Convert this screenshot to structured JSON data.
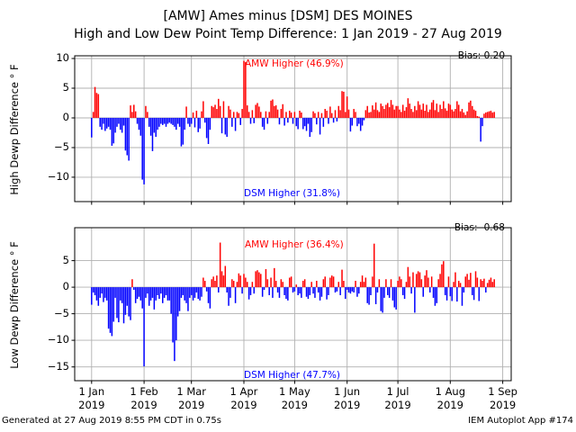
{
  "header": {
    "title_line1": "[AMW] Ames minus [DSM] DES MOINES",
    "title_line2": "High and Low Dew Point Temp Difference: 1 Jan 2019 - 27 Aug 2019"
  },
  "footer": {
    "generated_text": "Generated at 27 Aug 2019 8:55 PM CDT in 0.75s",
    "app_text": "IEM Autoplot App #174"
  },
  "colors": {
    "amw_higher_bar": "#ff0000",
    "dsm_higher_bar": "#0000ff",
    "grid": "#b0b0b0",
    "frame": "#000000"
  },
  "x_axis": {
    "xlim_days": [
      -10,
      248
    ],
    "tick_days": [
      0,
      31,
      59,
      90,
      120,
      151,
      181,
      212,
      243
    ],
    "tick_labels_line1": [
      "1 Jan",
      "1 Feb",
      "1 Mar",
      "1 Apr",
      "1 May",
      "1 Jun",
      "1 Jul",
      "1 Aug",
      "1 Sep"
    ],
    "tick_labels_line2": [
      "2019",
      "2019",
      "2019",
      "2019",
      "2019",
      "2019",
      "2019",
      "2019",
      "2019"
    ]
  },
  "chart_data": [
    {
      "type": "bar",
      "ylabel": "High Dewp Difference ° F",
      "bias_text": "Bias: 0.20",
      "annotation_red": "AMW Higher (46.9%)",
      "annotation_blue": "DSM Higher (31.8%)",
      "date_range": "1 Jan 2019 - 27 Aug 2019",
      "ylim": [
        -14.1,
        10.45
      ],
      "yticks": [
        10,
        5,
        0,
        -5,
        -10
      ],
      "grid": true,
      "values": [
        -3.3,
        1.0,
        5.2,
        4.2,
        4.0,
        -1.5,
        -2.0,
        -1.0,
        -2.2,
        -1.8,
        -1.5,
        -2.0,
        -4.7,
        -4.3,
        -2.5,
        -1.5,
        -1.0,
        -2.0,
        -2.5,
        -1.3,
        -5.5,
        -6.3,
        -7.2,
        2.1,
        1.0,
        2.2,
        1.1,
        -1.0,
        -2.0,
        -3.0,
        -10.4,
        -11.2,
        2.0,
        1.0,
        -1.5,
        -3.0,
        -5.6,
        -2.5,
        -3.2,
        -2.0,
        -1.5,
        -1.0,
        -1.2,
        -1.0,
        -1.5,
        -1.0,
        -0.8,
        -1.0,
        -1.2,
        -1.5,
        -2.0,
        -1.0,
        -1.5,
        -4.8,
        -4.5,
        -2.0,
        1.9,
        -1.0,
        -1.5,
        -1.0,
        0.9,
        -1.6,
        1.2,
        -2.4,
        -1.8,
        1.1,
        2.8,
        -0.8,
        -3.4,
        -4.4,
        -2.0,
        2.0,
        1.8,
        2.2,
        1.5,
        3.2,
        2.0,
        -2.6,
        2.8,
        -2.8,
        -3.2,
        2.0,
        1.4,
        -1.5,
        1.0,
        -2.2,
        1.0,
        0.8,
        -1.2,
        1.5,
        9.6,
        9.4,
        2.1,
        1.0,
        -1.0,
        1.3,
        -0.9,
        2.2,
        2.5,
        1.9,
        1.0,
        -1.5,
        -2.0,
        1.1,
        -1.0,
        1.0,
        2.9,
        3.1,
        2.0,
        2.1,
        1.4,
        -1.1,
        1.5,
        2.3,
        -1.3,
        1.0,
        -0.8,
        1.2,
        0.9,
        -1.0,
        1.0,
        -1.4,
        -1.9,
        1.2,
        0.9,
        -1.9,
        -1.4,
        -2.2,
        -1.0,
        -3.2,
        -2.4,
        1.1,
        0.8,
        -1.1,
        1.0,
        -2.8,
        0.8,
        -1.5,
        1.5,
        1.2,
        -1.0,
        1.9,
        0.8,
        -0.8,
        1.3,
        -0.6,
        2.0,
        1.3,
        4.5,
        4.4,
        1.0,
        3.6,
        1.4,
        -2.3,
        -1.3,
        1.5,
        1.0,
        -1.4,
        -1.0,
        -2.2,
        -1.3,
        -0.4,
        1.3,
        2.0,
        0.9,
        1.0,
        2.1,
        1.4,
        2.6,
        1.3,
        1.0,
        2.4,
        2.0,
        1.5,
        2.2,
        2.5,
        1.8,
        3.0,
        2.2,
        1.4,
        2.0,
        2.0,
        1.4,
        1.0,
        2.2,
        1.2,
        1.8,
        3.3,
        2.4,
        1.5,
        1.0,
        2.0,
        1.3,
        2.8,
        2.2,
        1.4,
        2.4,
        1.2,
        2.2,
        1.0,
        1.4,
        2.6,
        3.0,
        1.3,
        2.4,
        1.0,
        2.2,
        1.5,
        2.8,
        1.6,
        1.2,
        2.4,
        2.2,
        1.4,
        1.1,
        1.5,
        2.8,
        2.2,
        1.1,
        1.5,
        0.9,
        0.5,
        1.1,
        2.6,
        2.9,
        2.0,
        1.4,
        1.2,
        0.3,
        0.2,
        -4.0,
        -1.4,
        0.7,
        0.9,
        1.0,
        1.1,
        1.2,
        0.9,
        1.0
      ]
    },
    {
      "type": "bar",
      "ylabel": "Low Dewp Difference ° F",
      "bias_text": "Bias: -0.68",
      "annotation_red": "AMW Higher (36.4%)",
      "annotation_blue": "DSM Higher (47.7%)",
      "date_range": "1 Jan 2019 - 27 Aug 2019",
      "ylim": [
        -17.6,
        11.2
      ],
      "yticks": [
        5,
        0,
        -5,
        -10,
        -15
      ],
      "grid": true,
      "values": [
        -3.3,
        -1.0,
        -1.5,
        -2.5,
        -3.5,
        -2.0,
        -1.2,
        -2.8,
        -2.0,
        -2.5,
        -7.8,
        -8.6,
        -9.2,
        -6.5,
        -2.0,
        -5.8,
        -6.6,
        -2.5,
        -3.0,
        -6.8,
        -5.2,
        -3.5,
        -5.5,
        -6.2,
        1.5,
        -0.5,
        -3.0,
        -2.2,
        -1.8,
        -2.5,
        -4.0,
        -14.9,
        -2.0,
        -1.2,
        -3.5,
        -2.5,
        -2.0,
        -4.2,
        -2.5,
        -1.5,
        -2.2,
        -1.2,
        -3.0,
        -2.0,
        -1.5,
        -2.5,
        -2.5,
        -5.0,
        -10.4,
        -13.9,
        -10.0,
        -5.5,
        -4.5,
        -2.0,
        -1.5,
        -2.5,
        -3.0,
        -4.5,
        -2.0,
        -1.5,
        -2.5,
        -2.0,
        -1.0,
        -2.2,
        -2.5,
        -1.8,
        1.8,
        1.2,
        -0.8,
        -3.0,
        -4.0,
        1.5,
        2.0,
        1.2,
        2.2,
        -1.0,
        8.4,
        3.0,
        2.2,
        4.0,
        -1.0,
        -3.5,
        -2.0,
        1.5,
        1.2,
        -3.0,
        1.0,
        2.6,
        2.2,
        -1.2,
        2.5,
        1.8,
        1.0,
        -2.3,
        -1.5,
        1.0,
        -1.2,
        3.0,
        3.2,
        2.8,
        2.5,
        -1.8,
        -0.5,
        3.4,
        1.5,
        -1.5,
        1.8,
        -2.0,
        3.6,
        1.2,
        -1.0,
        -2.0,
        1.5,
        1.0,
        -1.5,
        -2.2,
        -2.5,
        1.8,
        2.0,
        -1.0,
        -0.8,
        0.5,
        -1.5,
        -1.2,
        -2.0,
        1.2,
        1.5,
        -1.8,
        -2.2,
        -1.5,
        1.0,
        -1.2,
        -2.0,
        1.2,
        -1.0,
        -2.5,
        -1.8,
        1.5,
        2.0,
        -2.3,
        -1.5,
        1.8,
        2.2,
        2.0,
        -1.0,
        -0.8,
        1.0,
        -1.5,
        3.3,
        1.2,
        -2.2,
        -0.5,
        -1.0,
        -1.2,
        -0.8,
        -1.0,
        1.2,
        -1.8,
        -1.2,
        1.0,
        2.2,
        1.0,
        1.8,
        -3.0,
        -3.3,
        -1.5,
        2.0,
        8.2,
        -3.2,
        -1.0,
        1.5,
        -4.5,
        -4.8,
        -2.0,
        1.5,
        -1.5,
        -2.0,
        1.5,
        -2.5,
        -3.8,
        -4.2,
        1.2,
        2.0,
        1.5,
        -1.5,
        -2.2,
        1.0,
        3.8,
        2.0,
        -1.2,
        2.8,
        -4.8,
        2.5,
        3.0,
        2.8,
        1.5,
        -1.8,
        2.2,
        3.2,
        1.8,
        -1.0,
        2.0,
        -2.0,
        -3.5,
        -3.0,
        1.5,
        2.5,
        4.3,
        4.9,
        -1.5,
        -2.5,
        2.0,
        -1.7,
        -2.6,
        1.0,
        2.8,
        -2.7,
        1.2,
        0.8,
        -3.5,
        -1.0,
        2.0,
        2.5,
        1.4,
        2.7,
        -1.5,
        -2.4,
        3.0,
        1.8,
        -2.6,
        1.5,
        1.2,
        1.6,
        -1.0,
        0.8,
        1.4,
        1.8,
        1.0,
        1.5
      ]
    }
  ]
}
